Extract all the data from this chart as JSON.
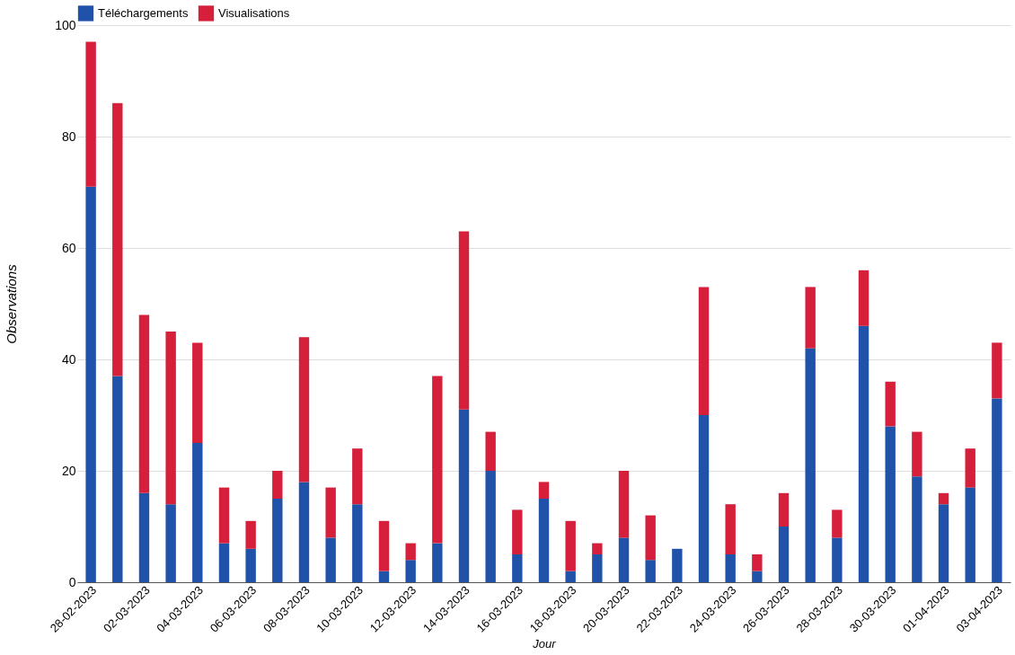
{
  "chart_data": {
    "type": "bar",
    "xlabel": "Jour",
    "ylabel": "Observations",
    "categories": [
      "28-02-2023",
      null,
      "02-03-2023",
      null,
      "04-03-2023",
      null,
      "06-03-2023",
      null,
      "08-03-2023",
      null,
      "10-03-2023",
      null,
      "12-03-2023",
      null,
      "14-03-2023",
      null,
      "16-03-2023",
      null,
      "18-03-2023",
      null,
      "20-03-2023",
      null,
      "22-03-2023",
      null,
      "24-03-2023",
      null,
      "26-03-2023",
      null,
      "28-03-2023",
      null,
      "30-03-2023",
      null,
      "01-04-2023",
      null,
      "03-04-2023"
    ],
    "stacked": true,
    "series": [
      {
        "name": "Téléchargements",
        "color": "#1f52a8",
        "values": [
          71,
          37,
          16,
          14,
          25,
          7,
          6,
          15,
          18,
          8,
          14,
          2,
          4,
          7,
          31,
          20,
          5,
          15,
          2,
          5,
          8,
          4,
          6,
          30,
          5,
          2,
          10,
          42,
          8,
          46,
          28,
          19,
          14,
          17,
          33
        ]
      },
      {
        "name": "Visualisations",
        "color": "#d51f3b",
        "values": [
          26,
          49,
          32,
          31,
          18,
          10,
          5,
          5,
          26,
          9,
          10,
          9,
          3,
          30,
          32,
          7,
          8,
          3,
          9,
          2,
          12,
          8,
          0,
          23,
          9,
          3,
          6,
          11,
          5,
          10,
          8,
          8,
          2,
          7,
          10
        ]
      }
    ],
    "ylim": [
      0,
      100
    ],
    "yticks": [
      0,
      20,
      40,
      60,
      80,
      100
    ],
    "grid": "y",
    "legend": "top left"
  }
}
